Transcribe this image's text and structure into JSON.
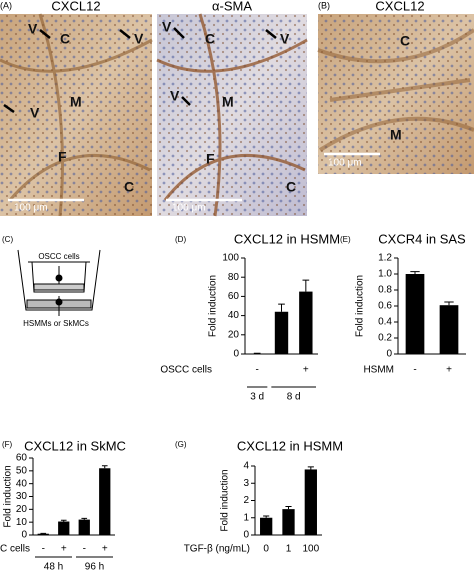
{
  "panel_letters": [
    "(A)",
    "(B)",
    "(C)",
    "(D)",
    "(E)",
    "(F)",
    "(G)"
  ],
  "images": [
    {
      "title": "CXCL12",
      "labels": [
        "V",
        "C",
        "V",
        "V",
        "M",
        "F",
        "C"
      ],
      "scale": "100 μm"
    },
    {
      "title": "α-SMA",
      "labels": [
        "V",
        "C",
        "V",
        "V",
        "M",
        "F",
        "C"
      ],
      "scale": "100 μm"
    },
    {
      "title": "CXCL12",
      "labels": [
        "C",
        "M"
      ],
      "scale": "100 μm"
    }
  ],
  "diagram": {
    "top": "OSCC cells",
    "bottom": "HSMMs or SkMCs"
  },
  "chart_data": [
    {
      "type": "bar",
      "title": "CXCL12 in HSMM",
      "ylabel": "Fold induction",
      "xlabel": "OSCC cells",
      "categories": [
        "-",
        null,
        "+"
      ],
      "groups": [
        "3 d",
        "8 d"
      ],
      "values": [
        0.5,
        44,
        65
      ],
      "errors": [
        0.3,
        8,
        12
      ],
      "color": "#000000",
      "ylim": [
        0,
        100
      ],
      "yticks": [
        0,
        20,
        40,
        60,
        80,
        100
      ]
    },
    {
      "type": "bar",
      "title": "CXCR4 in SAS",
      "ylabel": "Fold induction",
      "xlabel": "HSMM",
      "categories": [
        "-",
        "+"
      ],
      "values": [
        1.0,
        0.61
      ],
      "errors": [
        0.03,
        0.04
      ],
      "color": "#000000",
      "ylim": [
        0,
        1.2
      ],
      "yticks": [
        0,
        0.2,
        0.4,
        0.6,
        0.8,
        {
          "value": 1,
          "label": "1.0"
        },
        1.2
      ]
    },
    {
      "type": "bar",
      "title": "CXCL12 in SkMC",
      "ylabel": "Fold induction",
      "xlabel": "OSCC cells",
      "categories": [
        "-",
        "+",
        "-",
        "+"
      ],
      "groups": [
        "48 h",
        "96 h"
      ],
      "values": [
        1,
        10.5,
        12,
        52
      ],
      "errors": [
        0.3,
        1,
        1,
        2
      ],
      "color": "#000000",
      "ylim": [
        0,
        60
      ],
      "yticks": [
        0,
        10,
        20,
        30,
        40,
        50,
        60
      ]
    },
    {
      "type": "bar",
      "title": "CXCL12 in HSMM",
      "ylabel": "Fold induction",
      "xlabel": "TGF-β (ng/mL)",
      "categories": [
        "0",
        "1",
        "100"
      ],
      "values": [
        1,
        1.5,
        3.8
      ],
      "errors": [
        0.1,
        0.15,
        0.15
      ],
      "color": "#000000",
      "ylim": [
        0,
        4
      ],
      "yticks": [
        0,
        1,
        2,
        3,
        4
      ]
    }
  ]
}
